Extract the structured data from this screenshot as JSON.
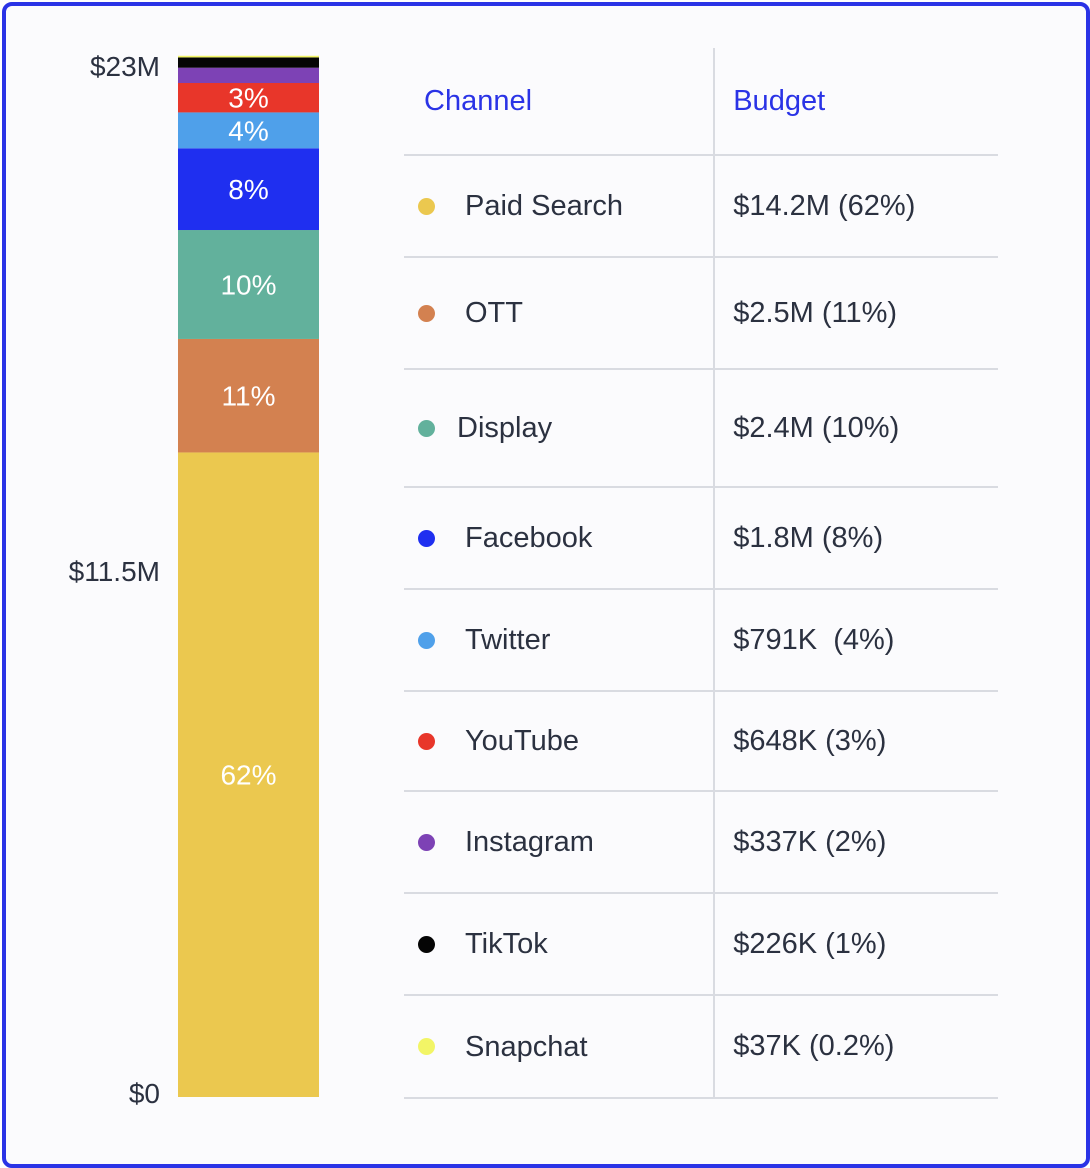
{
  "chart_data": {
    "type": "bar",
    "stacked": true,
    "ylim": [
      0,
      23
    ],
    "y_ticks": [
      "$23M",
      "$11.5M",
      "$0"
    ],
    "y_tick_values": [
      23,
      11.5,
      0
    ],
    "table_headers": {
      "channel": "Channel",
      "budget": "Budget"
    },
    "series": [
      {
        "name": "Paid Search",
        "value": 14.2,
        "percent": "62%",
        "budget": "$14.2M (62%)",
        "color": "#ebc84f"
      },
      {
        "name": "OTT",
        "value": 2.5,
        "percent": "11%",
        "budget": "$2.5M (11%)",
        "color": "#d38150"
      },
      {
        "name": "Display",
        "value": 2.4,
        "percent": "10%",
        "budget": "$2.4M (10%)",
        "color": "#62b19c"
      },
      {
        "name": "Facebook",
        "value": 1.8,
        "percent": "8%",
        "budget": "$1.8M (8%)",
        "color": "#1f2ff0"
      },
      {
        "name": "Twitter",
        "value": 0.791,
        "percent": "4%",
        "budget": "$791K  (4%)",
        "color": "#4fa0ea"
      },
      {
        "name": "YouTube",
        "value": 0.648,
        "percent": "3%",
        "budget": "$648K (3%)",
        "color": "#e8362a"
      },
      {
        "name": "Instagram",
        "value": 0.337,
        "percent": "",
        "budget": "$337K (2%)",
        "color": "#7d42b5"
      },
      {
        "name": "TikTok",
        "value": 0.226,
        "percent": "",
        "budget": "$226K (1%)",
        "color": "#050505"
      },
      {
        "name": "Snapchat",
        "value": 0.037,
        "percent": "",
        "budget": "$37K (0.2%)",
        "color": "#f2f566"
      }
    ]
  }
}
